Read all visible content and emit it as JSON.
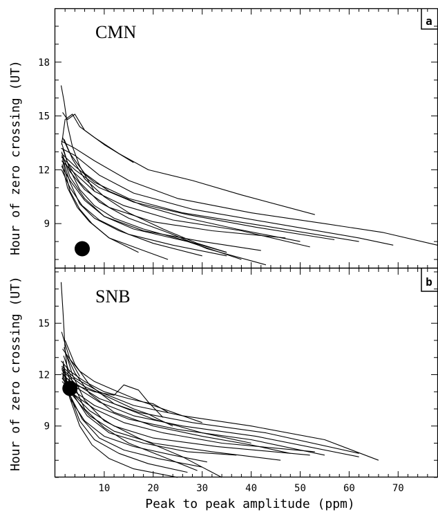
{
  "figure": {
    "ylabel": "Hour of zero crossing (UT)",
    "xlabel": "Peak to peak amplitude (ppm)",
    "x_ticks": [
      "10",
      "20",
      "30",
      "40",
      "50",
      "60",
      "70"
    ]
  },
  "chart_data": [
    {
      "type": "line",
      "panel_label": "a",
      "station": "CMN",
      "xlabel": "",
      "ylabel": "Hour of zero crossing (UT)",
      "xlim": [
        0,
        78
      ],
      "ylim": [
        6.5,
        21
      ],
      "y_ticks": [
        9,
        12,
        15,
        18
      ],
      "marker": {
        "x": 5.5,
        "y": 7.6
      },
      "series": [
        {
          "x": [
            1.2,
            1.8,
            2.5,
            3.5,
            5,
            8
          ],
          "y": [
            16.7,
            15.8,
            14.5,
            13.3,
            12.2,
            10.8
          ]
        },
        {
          "x": [
            1.5,
            2.5,
            4,
            6,
            10,
            16
          ],
          "y": [
            15.2,
            14.8,
            15.1,
            14.2,
            13.4,
            12.4
          ]
        },
        {
          "x": [
            1.3,
            2,
            3.5,
            5,
            8,
            13,
            19,
            28,
            38,
            53
          ],
          "y": [
            13.4,
            14.8,
            15.1,
            14.4,
            13.8,
            12.9,
            12.0,
            11.4,
            10.6,
            9.5
          ]
        },
        {
          "x": [
            1.2,
            4,
            8,
            15,
            25,
            40,
            55,
            67,
            78
          ],
          "y": [
            13.6,
            13.2,
            12.5,
            11.4,
            10.4,
            9.6,
            9.0,
            8.5,
            7.8
          ]
        },
        {
          "x": [
            1.2,
            4,
            9,
            16,
            28,
            45,
            62,
            69
          ],
          "y": [
            13.2,
            12.8,
            11.7,
            10.7,
            9.8,
            9.0,
            8.2,
            7.8
          ]
        },
        {
          "x": [
            1.3,
            4,
            8,
            15,
            26,
            42,
            62
          ],
          "y": [
            12.9,
            12.2,
            11.3,
            10.4,
            9.6,
            8.9,
            8.0
          ]
        },
        {
          "x": [
            1.3,
            4,
            9,
            16,
            27,
            41,
            57
          ],
          "y": [
            12.7,
            12.0,
            11.0,
            10.2,
            9.5,
            8.8,
            8.1
          ]
        },
        {
          "x": [
            1.3,
            4,
            8,
            14,
            24,
            38,
            52
          ],
          "y": [
            12.5,
            11.8,
            10.8,
            10.0,
            9.2,
            8.6,
            7.7
          ]
        },
        {
          "x": [
            1.3,
            3,
            6,
            11,
            20,
            32,
            47
          ],
          "y": [
            12.8,
            11.9,
            10.9,
            9.9,
            9.1,
            8.6,
            8.2
          ]
        },
        {
          "x": [
            1.3,
            3,
            6,
            10,
            18,
            30,
            42
          ],
          "y": [
            12.2,
            11.4,
            10.3,
            9.4,
            8.6,
            8.0,
            7.5
          ]
        },
        {
          "x": [
            1.3,
            3,
            5.5,
            9,
            15,
            24,
            35
          ],
          "y": [
            12.0,
            11.0,
            10.0,
            9.2,
            8.4,
            7.8,
            7.2
          ]
        },
        {
          "x": [
            1.3,
            3,
            6,
            10,
            16,
            27,
            38
          ],
          "y": [
            13.0,
            11.6,
            10.4,
            9.4,
            8.7,
            8.0,
            7.0
          ]
        },
        {
          "x": [
            1.5,
            3,
            5,
            8,
            13,
            20,
            30
          ],
          "y": [
            12.6,
            11.3,
            10.1,
            9.3,
            8.6,
            7.9,
            7.2
          ]
        },
        {
          "x": [
            1.4,
            2.5,
            4.5,
            7,
            11,
            17,
            23
          ],
          "y": [
            12.3,
            11.0,
            9.9,
            9.1,
            8.2,
            7.6,
            7.0
          ]
        },
        {
          "x": [
            1.5,
            3,
            5,
            7.5,
            11,
            17
          ],
          "y": [
            12.5,
            10.8,
            9.8,
            9.0,
            8.2,
            7.4
          ]
        },
        {
          "x": [
            1.5,
            3,
            5,
            8,
            12,
            18,
            26,
            35
          ],
          "y": [
            13.2,
            12.0,
            10.9,
            10.0,
            9.3,
            8.7,
            8.1,
            7.4
          ]
        },
        {
          "x": [
            1.5,
            3,
            6,
            11,
            18,
            27,
            37,
            50
          ],
          "y": [
            13.8,
            12.9,
            11.8,
            10.8,
            10.0,
            9.3,
            8.7,
            8.0
          ]
        },
        {
          "x": [
            1.3,
            2.5,
            5,
            9,
            15,
            23,
            31,
            43
          ],
          "y": [
            13.5,
            12.4,
            11.3,
            10.2,
            9.3,
            8.5,
            7.6,
            6.7
          ]
        },
        {
          "x": [
            1.8,
            3.5,
            6,
            10,
            15,
            22,
            29,
            35
          ],
          "y": [
            13.7,
            12.6,
            11.5,
            10.5,
            9.6,
            8.7,
            7.9,
            7.4
          ]
        }
      ]
    },
    {
      "type": "line",
      "panel_label": "b",
      "station": "SNB",
      "xlabel": "Peak to peak amplitude (ppm)",
      "ylabel": "Hour of zero crossing (UT)",
      "xlim": [
        0,
        78
      ],
      "ylim": [
        6,
        18.2
      ],
      "y_ticks": [
        9,
        12,
        15
      ],
      "marker": {
        "x": 3.0,
        "y": 11.2
      },
      "series": [
        {
          "x": [
            1.2,
            1.6,
            2,
            2.5,
            3,
            3.5
          ],
          "y": [
            17.4,
            15.6,
            13.5,
            12.2,
            11.6,
            11.3
          ]
        },
        {
          "x": [
            1.3,
            2,
            3,
            4,
            5
          ],
          "y": [
            14.5,
            13.8,
            12.9,
            12.4,
            11.9
          ]
        },
        {
          "x": [
            1.5,
            3,
            5,
            8,
            12,
            17,
            22,
            30
          ],
          "y": [
            13.5,
            12.9,
            12.2,
            11.6,
            11.1,
            10.5,
            10.0,
            9.2
          ]
        },
        {
          "x": [
            1.2,
            3,
            6,
            10,
            15,
            18,
            20,
            23
          ],
          "y": [
            12.8,
            12.2,
            11.6,
            11.0,
            10.6,
            10.4,
            10.3,
            9.8
          ]
        },
        {
          "x": [
            1.3,
            3,
            6,
            10,
            13,
            16,
            19,
            21,
            24
          ],
          "y": [
            12.4,
            11.9,
            11.3,
            10.8,
            10.4,
            10.0,
            9.7,
            9.4,
            9.0
          ]
        },
        {
          "x": [
            1.5,
            4,
            8,
            12,
            14,
            17,
            19,
            22
          ],
          "y": [
            12.0,
            11.4,
            11.0,
            10.8,
            11.4,
            11.1,
            10.4,
            9.5
          ]
        },
        {
          "x": [
            1.3,
            4,
            9,
            16,
            26,
            40,
            55,
            66
          ],
          "y": [
            12.5,
            11.8,
            11.0,
            10.2,
            9.6,
            9.0,
            8.2,
            7.0
          ]
        },
        {
          "x": [
            1.3,
            4,
            9,
            17,
            28,
            43,
            62
          ],
          "y": [
            12.3,
            11.5,
            10.6,
            9.8,
            9.2,
            8.6,
            7.4
          ]
        },
        {
          "x": [
            1.3,
            4,
            9,
            16,
            26,
            41,
            62
          ],
          "y": [
            12.1,
            11.3,
            10.4,
            9.6,
            9.0,
            8.4,
            7.2
          ]
        },
        {
          "x": [
            1.4,
            4,
            8,
            15,
            25,
            40,
            55
          ],
          "y": [
            11.8,
            11.0,
            10.2,
            9.4,
            8.8,
            8.2,
            7.3
          ]
        },
        {
          "x": [
            1.4,
            4,
            8,
            14,
            22,
            34,
            53
          ],
          "y": [
            11.6,
            10.8,
            10.0,
            9.2,
            8.6,
            8.0,
            7.5
          ]
        },
        {
          "x": [
            1.4,
            3.5,
            7,
            12,
            20,
            33,
            52
          ],
          "y": [
            11.8,
            10.9,
            9.9,
            9.0,
            8.3,
            7.8,
            7.3
          ]
        },
        {
          "x": [
            1.5,
            3.5,
            7,
            12,
            20,
            32,
            46
          ],
          "y": [
            12.0,
            10.8,
            9.6,
            8.7,
            8.0,
            7.5,
            7.0
          ]
        },
        {
          "x": [
            1.5,
            3.5,
            6.5,
            11,
            18,
            27,
            37
          ],
          "y": [
            12.2,
            10.9,
            9.6,
            8.6,
            8.0,
            7.5,
            7.3
          ]
        },
        {
          "x": [
            1.5,
            3,
            6,
            10,
            16,
            24,
            31
          ],
          "y": [
            11.9,
            10.6,
            9.3,
            8.4,
            7.8,
            7.3,
            6.9
          ]
        },
        {
          "x": [
            1.5,
            3,
            5.5,
            9,
            14,
            21,
            30
          ],
          "y": [
            12.4,
            10.8,
            9.4,
            8.3,
            7.6,
            7.1,
            6.6
          ]
        },
        {
          "x": [
            1.6,
            3,
            5,
            8,
            13,
            19,
            27
          ],
          "y": [
            12.6,
            10.8,
            9.3,
            8.2,
            7.4,
            6.8,
            6.3
          ]
        },
        {
          "x": [
            1.6,
            3,
            5,
            7.5,
            11,
            16,
            25
          ],
          "y": [
            12.8,
            10.6,
            9.0,
            7.9,
            7.1,
            6.5,
            6.0
          ]
        },
        {
          "x": [
            1.7,
            3.5,
            6,
            10,
            15,
            22,
            29
          ],
          "y": [
            13.1,
            11.6,
            10.0,
            8.9,
            8.0,
            7.2,
            6.4
          ]
        },
        {
          "x": [
            1.8,
            3.5,
            6,
            10,
            17,
            26,
            34
          ],
          "y": [
            13.6,
            12.0,
            10.5,
            9.3,
            8.3,
            7.2,
            6.0
          ]
        },
        {
          "x": [
            2,
            4,
            7,
            12,
            20,
            30,
            40,
            48
          ],
          "y": [
            13.3,
            12.1,
            10.9,
            9.8,
            9.0,
            8.4,
            7.9,
            7.4
          ]
        },
        {
          "x": [
            2,
            4,
            7,
            12,
            20,
            30,
            40
          ],
          "y": [
            14.0,
            12.6,
            11.4,
            10.3,
            9.4,
            8.6,
            8.0
          ]
        }
      ]
    }
  ]
}
